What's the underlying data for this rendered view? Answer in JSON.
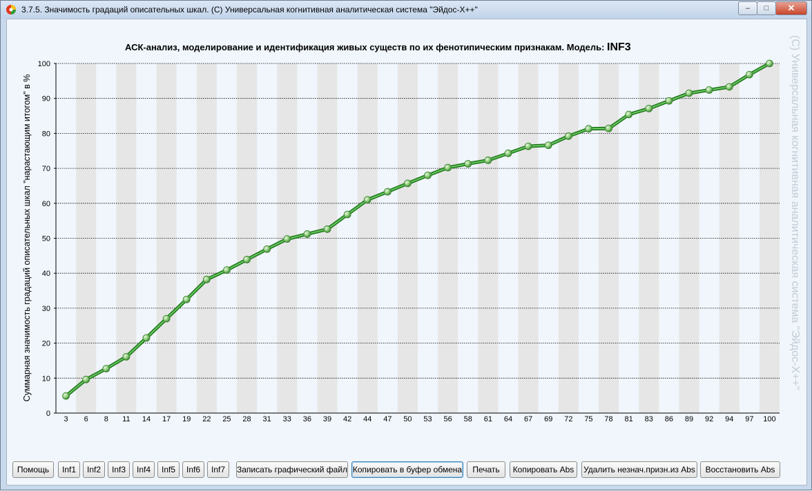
{
  "window": {
    "title": "3.7.5. Значимость градаций описательных шкал.   (С) Универсальная когнитивная аналитическая система \"Эйдос-Х++\"",
    "controls": {
      "minimize": "–",
      "maximize": "□",
      "close": "✕"
    }
  },
  "watermark": "(С) Универсальная когнитивная аналитическая система  \"Эйдос-Х++\"",
  "colors": {
    "line": "#2e9b2a",
    "marker": "#8fce7c",
    "stripe": "#e6e6e6"
  },
  "chart_data": {
    "type": "line",
    "title": "АСК-анализ, моделирование и идентификация живых существ по их фенотипическим признакам. Модель: ",
    "title_model": "INF3",
    "xlabel": "",
    "ylabel": "Суммарная значимость градаций описательных шкал \"нарастающим итогом\" в %",
    "ylim": [
      0,
      100
    ],
    "yticks": [
      0,
      10,
      20,
      30,
      40,
      50,
      60,
      70,
      80,
      90,
      100
    ],
    "grid": true,
    "x": [
      3,
      6,
      8,
      11,
      14,
      17,
      19,
      22,
      25,
      28,
      31,
      33,
      36,
      39,
      42,
      44,
      47,
      50,
      53,
      56,
      58,
      61,
      64,
      67,
      69,
      72,
      75,
      78,
      81,
      83,
      86,
      89,
      92,
      94,
      97,
      100
    ],
    "values": [
      4.9,
      9.6,
      12.7,
      16.1,
      21.5,
      27.0,
      32.5,
      38.2,
      40.9,
      43.9,
      46.9,
      49.8,
      51.2,
      52.6,
      56.8,
      61.0,
      63.3,
      65.7,
      68.0,
      70.2,
      71.3,
      72.3,
      74.3,
      76.3,
      76.6,
      79.2,
      81.3,
      81.4,
      85.4,
      87.1,
      89.3,
      91.5,
      92.4,
      93.3,
      96.8,
      100.0
    ]
  },
  "buttons": [
    {
      "label": "Помощь"
    },
    {
      "label": "Inf1"
    },
    {
      "label": "Inf2"
    },
    {
      "label": "Inf3"
    },
    {
      "label": "Inf4"
    },
    {
      "label": "Inf5"
    },
    {
      "label": "Inf6"
    },
    {
      "label": "Inf7"
    },
    {
      "label": "Записать графический файл"
    },
    {
      "label": "Копировать в буфер обмена"
    },
    {
      "label": "Печать"
    },
    {
      "label": "Копировать Abs"
    },
    {
      "label": "Удалить незнач.призн.из Abs"
    },
    {
      "label": "Восстановить Abs"
    }
  ]
}
